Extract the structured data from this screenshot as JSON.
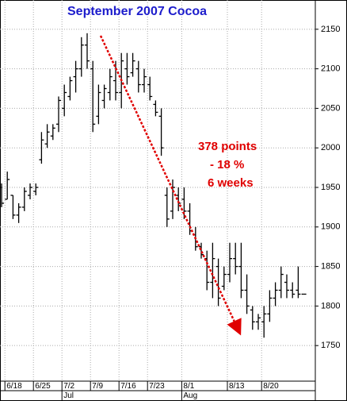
{
  "chart_data": {
    "type": "ohlc",
    "title": "September 2007 Cocoa",
    "annotations": [
      "378 points",
      "- 18 %",
      "6 weeks"
    ],
    "categories": [
      null,
      "6/18",
      null,
      null,
      null,
      null,
      "6/25",
      null,
      null,
      null,
      null,
      "7/2",
      null,
      null,
      null,
      null,
      "7/9",
      null,
      null,
      null,
      null,
      "7/16",
      null,
      null,
      null,
      null,
      "7/23",
      null,
      null,
      null,
      null,
      null,
      "8/1",
      null,
      null,
      null,
      null,
      null,
      null,
      null,
      "8/13",
      null,
      null,
      null,
      null,
      null,
      "8/20",
      null,
      null,
      null,
      null,
      null,
      null,
      null
    ],
    "months": [
      null,
      null,
      null,
      null,
      null,
      null,
      null,
      null,
      null,
      null,
      null,
      "Jul",
      null,
      null,
      null,
      null,
      null,
      null,
      null,
      null,
      null,
      null,
      null,
      null,
      null,
      null,
      null,
      null,
      null,
      null,
      null,
      null,
      "Aug",
      null,
      null,
      null,
      null,
      null,
      null,
      null,
      null,
      null,
      null,
      null,
      null,
      null,
      null,
      null,
      null,
      null,
      null,
      null,
      null,
      null
    ],
    "open": [
      1950,
      1935,
      1940,
      1915,
      1925,
      1940,
      1945,
      1985,
      2005,
      2015,
      2030,
      2050,
      2065,
      2090,
      2100,
      2130,
      2100,
      2040,
      2060,
      2070,
      2085,
      2070,
      2100,
      2095,
      2100,
      2080,
      2080,
      2055,
      2040,
      1940,
      1920,
      1940,
      1935,
      1920,
      1890,
      1875,
      1860,
      1830,
      1850,
      1825,
      1840,
      1860,
      1850,
      1820,
      1795,
      1780,
      1780,
      1790,
      1810,
      1820,
      1830,
      1820,
      1820,
      1815
    ],
    "high": [
      1955,
      1970,
      1940,
      1930,
      1950,
      1955,
      1955,
      2020,
      2030,
      2030,
      2065,
      2080,
      2090,
      2110,
      2140,
      2145,
      2110,
      2080,
      2080,
      2100,
      2110,
      2120,
      2120,
      2120,
      2110,
      2100,
      2090,
      2060,
      2050,
      1950,
      1960,
      1950,
      1950,
      1930,
      1900,
      1880,
      1870,
      1880,
      1860,
      1850,
      1880,
      1880,
      1880,
      1840,
      1800,
      1790,
      1800,
      1820,
      1830,
      1850,
      1840,
      1830,
      1850,
      1815
    ],
    "low": [
      1925,
      1935,
      1910,
      1905,
      1920,
      1935,
      1940,
      1980,
      2000,
      2010,
      2020,
      2040,
      2060,
      2070,
      2090,
      2100,
      2020,
      2030,
      2050,
      2060,
      2060,
      2050,
      2080,
      2090,
      2070,
      2070,
      2060,
      2040,
      1990,
      1900,
      1910,
      1920,
      1910,
      1890,
      1870,
      1860,
      1820,
      1810,
      1800,
      1820,
      1830,
      1840,
      1810,
      1790,
      1770,
      1770,
      1760,
      1780,
      1800,
      1810,
      1810,
      1810,
      1810,
      1815
    ],
    "close": [
      1930,
      1960,
      1915,
      1925,
      1945,
      1950,
      1950,
      2010,
      2020,
      2025,
      2060,
      2070,
      2085,
      2100,
      2130,
      2110,
      2030,
      2070,
      2075,
      2090,
      2070,
      2110,
      2090,
      2110,
      2080,
      2090,
      2065,
      2045,
      2000,
      1910,
      1950,
      1930,
      1920,
      1895,
      1875,
      1865,
      1830,
      1860,
      1810,
      1840,
      1860,
      1850,
      1820,
      1800,
      1780,
      1785,
      1790,
      1810,
      1820,
      1840,
      1820,
      1815,
      1815,
      1815
    ],
    "color": "#000000",
    "ylim": [
      1705,
      2187
    ],
    "yticks": [
      1750,
      1800,
      1850,
      1900,
      1950,
      2000,
      2050,
      2100,
      2150
    ],
    "grid": true
  }
}
